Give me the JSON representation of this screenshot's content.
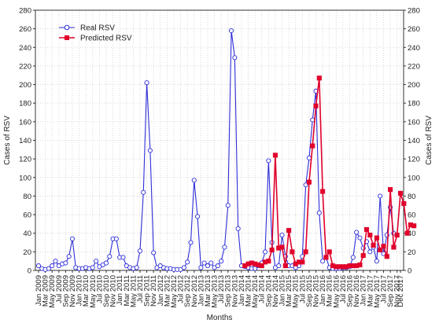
{
  "chart_data": {
    "type": "line",
    "title": "",
    "xlabel": "Months",
    "ylabel": "Cases of RSV",
    "ylim": [
      0,
      280
    ],
    "yticks": [
      0,
      20,
      40,
      60,
      80,
      100,
      120,
      140,
      160,
      180,
      200,
      220,
      240,
      260,
      280
    ],
    "grid": true,
    "legend_position": "top-left",
    "x_tick_labels": [
      "Jan 2009",
      "Mar 2009",
      "May 2009",
      "Jul 2009",
      "Sep 2009",
      "Nov 2009",
      "Jan 2010",
      "Mar 2010",
      "May 2010",
      "Jul 2010",
      "Sep 2010",
      "Nov 2010",
      "Jan 2011",
      "Mar 2011",
      "May 2011",
      "Jul 2011",
      "Sep 2011",
      "Nov 2011",
      "Jan 2012",
      "Mar 2012",
      "May 2012",
      "Jul 2012",
      "Sep 2012",
      "Nov 2012",
      "Jan 2013",
      "Mar 2013",
      "May 2013",
      "Jul 2013",
      "Sep 2013",
      "Nov 2013",
      "Jan 2014",
      "Mar 2014",
      "May 2014",
      "Jul 2014",
      "Sep 2014",
      "Nov 2014",
      "Jan 2015",
      "Mar 2015",
      "May 2015",
      "Jul 2015",
      "Sep 2015",
      "Nov 2015",
      "Jan 2016",
      "Mar 2016",
      "May 2016",
      "Jul 2016",
      "Sep 2016",
      "Nov 2016",
      "Jan 2017",
      "Mar 2017",
      "May 2017",
      "Jul 2017",
      "Sep 2017",
      "Nov 2017",
      "Dec 2017"
    ],
    "series": [
      {
        "name": "Real RSV",
        "color": "#2e2ed8",
        "marker": "open-circle",
        "start_month": "Jan 2009",
        "values": [
          5,
          2,
          1,
          2,
          5,
          10,
          5,
          7,
          8,
          15,
          34,
          3,
          2,
          2,
          3,
          2,
          3,
          10,
          4,
          6,
          8,
          15,
          34,
          34,
          14,
          14,
          5,
          3,
          2,
          3,
          21,
          84,
          202,
          129,
          19,
          3,
          5,
          3,
          2,
          2,
          1,
          1,
          1,
          3,
          9,
          30,
          97,
          58,
          3,
          8,
          5,
          8,
          3,
          5,
          10,
          25,
          70,
          258,
          229,
          45,
          5,
          4,
          3,
          2,
          2,
          5,
          8,
          20,
          118,
          30,
          3,
          5,
          38,
          15,
          5,
          5,
          3,
          5,
          15,
          92,
          121,
          162,
          193,
          62,
          10,
          14,
          3,
          2,
          2,
          2,
          3,
          3,
          4,
          14,
          41,
          35,
          24,
          31,
          20,
          25,
          10,
          80,
          18,
          38,
          68,
          40
        ]
      },
      {
        "name": "Predicted RSV",
        "color": "#e0002a",
        "marker": "filled-square",
        "start_month": "Feb 2014",
        "values": [
          5,
          7,
          8,
          7,
          6,
          5,
          9,
          10,
          22,
          124,
          24,
          25,
          5,
          43,
          20,
          7,
          9,
          9,
          20,
          95,
          134,
          177,
          207,
          85,
          14,
          20,
          5,
          4,
          4,
          4,
          4,
          5,
          5,
          5,
          6,
          16,
          44,
          38,
          27,
          35,
          22,
          26,
          15,
          87,
          25,
          38,
          83,
          72,
          40,
          49,
          48
        ]
      }
    ]
  }
}
